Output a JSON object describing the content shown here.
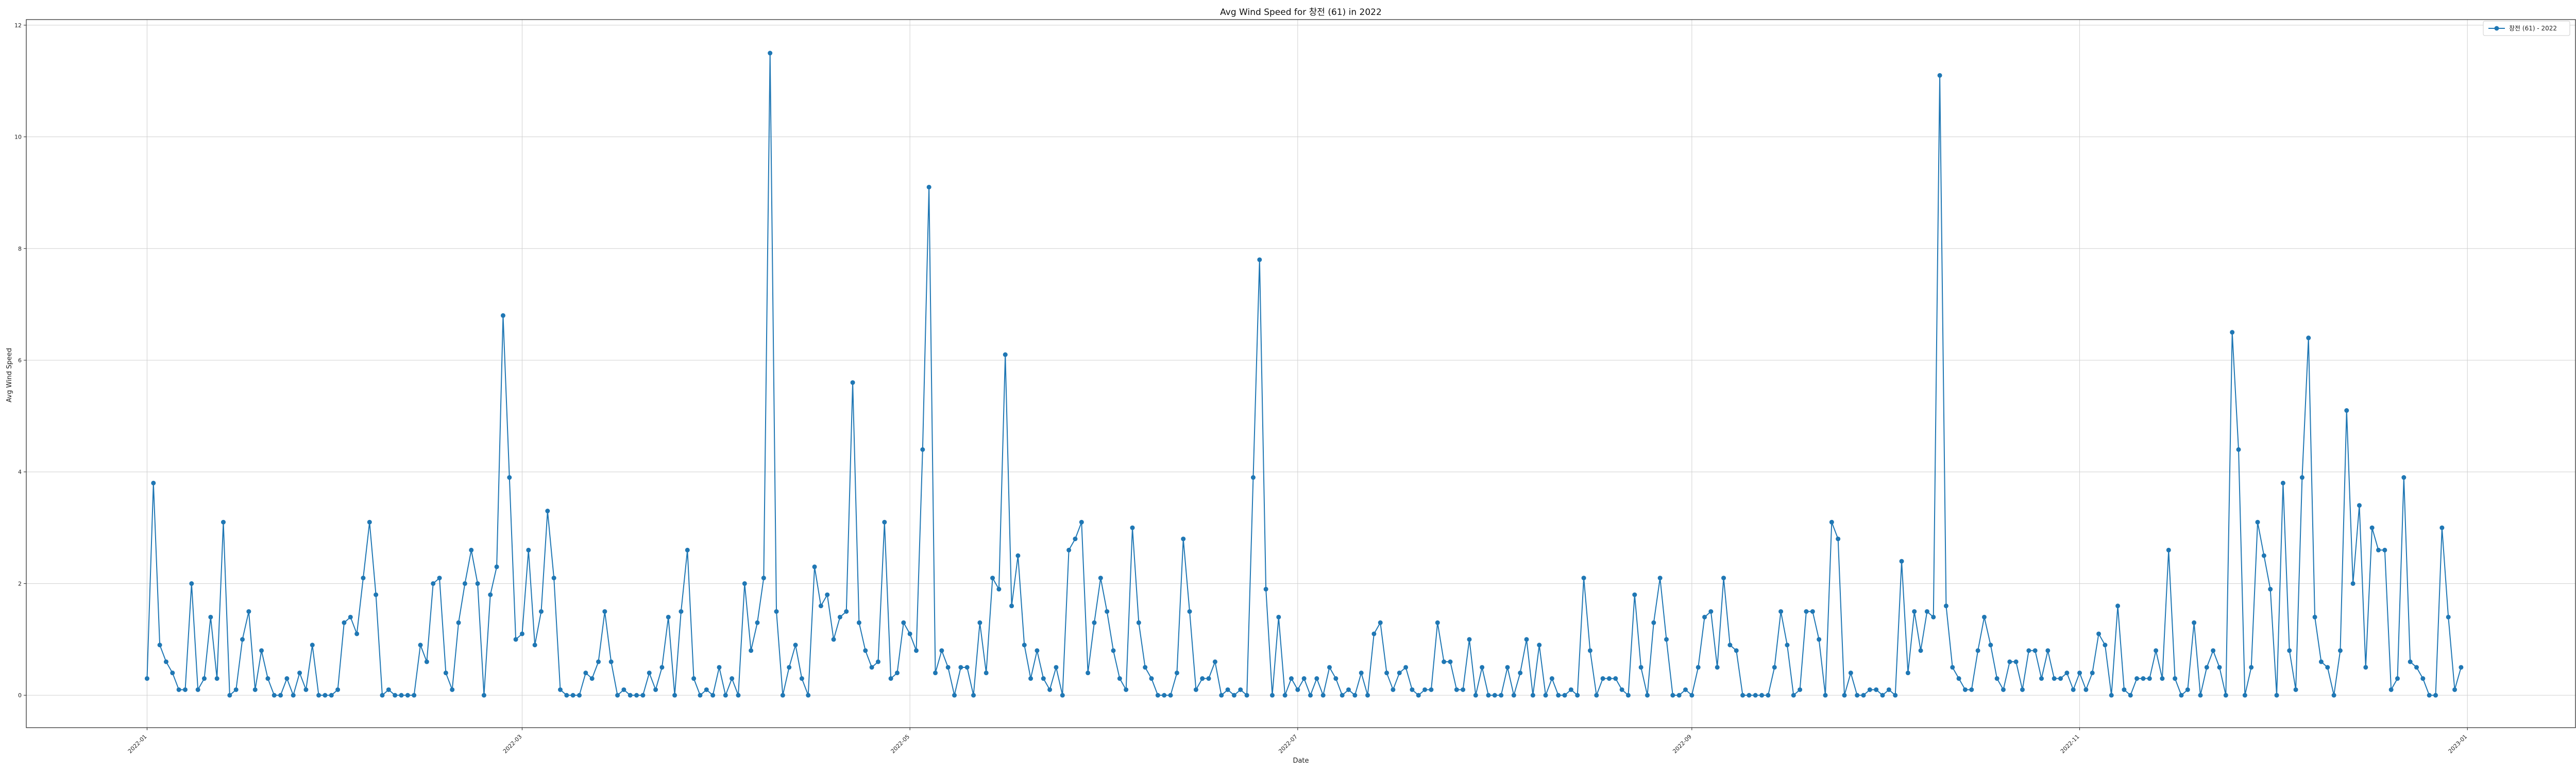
{
  "chart_data": {
    "type": "line",
    "title": "Avg Wind Speed for 창전 (61) in 2022",
    "xlabel": "Date",
    "ylabel": "Avg Wind Speed",
    "series": [
      {
        "name": "창전 (61) - 2022",
        "color": "#1f77b4",
        "marker": "circle",
        "x": [
          "2022-01-01",
          "2022-01-02",
          "2022-01-03",
          "2022-01-04",
          "2022-01-05",
          "2022-01-06",
          "2022-01-07",
          "2022-01-08",
          "2022-01-09",
          "2022-01-10",
          "2022-01-11",
          "2022-01-12",
          "2022-01-13",
          "2022-01-14",
          "2022-01-15",
          "2022-01-16",
          "2022-01-17",
          "2022-01-18",
          "2022-01-19",
          "2022-01-20",
          "2022-01-21",
          "2022-01-22",
          "2022-01-23",
          "2022-01-24",
          "2022-01-25",
          "2022-01-26",
          "2022-01-27",
          "2022-01-28",
          "2022-01-29",
          "2022-01-30",
          "2022-01-31",
          "2022-02-01",
          "2022-02-02",
          "2022-02-03",
          "2022-02-04",
          "2022-02-05",
          "2022-02-06",
          "2022-02-07",
          "2022-02-08",
          "2022-02-09",
          "2022-02-10",
          "2022-02-11",
          "2022-02-12",
          "2022-02-13",
          "2022-02-14",
          "2022-02-15",
          "2022-02-16",
          "2022-02-17",
          "2022-02-18",
          "2022-02-19",
          "2022-02-20",
          "2022-02-21",
          "2022-02-22",
          "2022-02-23",
          "2022-02-24",
          "2022-02-25",
          "2022-02-26",
          "2022-02-27",
          "2022-02-28",
          "2022-03-01",
          "2022-03-02",
          "2022-03-03",
          "2022-03-04",
          "2022-03-05",
          "2022-03-06",
          "2022-03-07",
          "2022-03-08",
          "2022-03-09",
          "2022-03-10",
          "2022-03-11",
          "2022-03-12",
          "2022-03-13",
          "2022-03-14",
          "2022-03-15",
          "2022-03-16",
          "2022-03-17",
          "2022-03-18",
          "2022-03-19",
          "2022-03-20",
          "2022-03-21",
          "2022-03-22",
          "2022-03-23",
          "2022-03-24",
          "2022-03-25",
          "2022-03-26",
          "2022-03-27",
          "2022-03-28",
          "2022-03-29",
          "2022-03-30",
          "2022-03-31",
          "2022-04-01",
          "2022-04-02",
          "2022-04-03",
          "2022-04-04",
          "2022-04-05",
          "2022-04-06",
          "2022-04-07",
          "2022-04-08",
          "2022-04-09",
          "2022-04-10",
          "2022-04-11",
          "2022-04-12",
          "2022-04-13",
          "2022-04-14",
          "2022-04-15",
          "2022-04-16",
          "2022-04-17",
          "2022-04-18",
          "2022-04-19",
          "2022-04-20",
          "2022-04-21",
          "2022-04-22",
          "2022-04-23",
          "2022-04-24",
          "2022-04-25",
          "2022-04-26",
          "2022-04-27",
          "2022-04-28",
          "2022-04-29",
          "2022-04-30",
          "2022-05-01",
          "2022-05-02",
          "2022-05-03",
          "2022-05-04",
          "2022-05-05",
          "2022-05-06",
          "2022-05-07",
          "2022-05-08",
          "2022-05-09",
          "2022-05-10",
          "2022-05-11",
          "2022-05-12",
          "2022-05-13",
          "2022-05-14",
          "2022-05-15",
          "2022-05-16",
          "2022-05-17",
          "2022-05-18",
          "2022-05-19",
          "2022-05-20",
          "2022-05-21",
          "2022-05-22",
          "2022-05-23",
          "2022-05-24",
          "2022-05-25",
          "2022-05-26",
          "2022-05-27",
          "2022-05-28",
          "2022-05-29",
          "2022-05-30",
          "2022-05-31",
          "2022-06-01",
          "2022-06-02",
          "2022-06-03",
          "2022-06-04",
          "2022-06-05",
          "2022-06-06",
          "2022-06-07",
          "2022-06-08",
          "2022-06-09",
          "2022-06-10",
          "2022-06-11",
          "2022-06-12",
          "2022-06-13",
          "2022-06-14",
          "2022-06-15",
          "2022-06-16",
          "2022-06-17",
          "2022-06-18",
          "2022-06-19",
          "2022-06-20",
          "2022-06-21",
          "2022-06-22",
          "2022-06-23",
          "2022-06-24",
          "2022-06-25",
          "2022-06-26",
          "2022-06-27",
          "2022-06-28",
          "2022-06-29",
          "2022-06-30",
          "2022-07-01",
          "2022-07-02",
          "2022-07-03",
          "2022-07-04",
          "2022-07-05",
          "2022-07-06",
          "2022-07-07",
          "2022-07-08",
          "2022-07-09",
          "2022-07-10",
          "2022-07-11",
          "2022-07-12",
          "2022-07-13",
          "2022-07-14",
          "2022-07-15",
          "2022-07-16",
          "2022-07-17",
          "2022-07-18",
          "2022-07-19",
          "2022-07-20",
          "2022-07-21",
          "2022-07-22",
          "2022-07-23",
          "2022-07-24",
          "2022-07-25",
          "2022-07-26",
          "2022-07-27",
          "2022-07-28",
          "2022-07-29",
          "2022-07-30",
          "2022-07-31",
          "2022-08-01",
          "2022-08-02",
          "2022-08-03",
          "2022-08-04",
          "2022-08-05",
          "2022-08-06",
          "2022-08-07",
          "2022-08-08",
          "2022-08-09",
          "2022-08-10",
          "2022-08-11",
          "2022-08-12",
          "2022-08-13",
          "2022-08-14",
          "2022-08-15",
          "2022-08-16",
          "2022-08-17",
          "2022-08-18",
          "2022-08-19",
          "2022-08-20",
          "2022-08-21",
          "2022-08-22",
          "2022-08-23",
          "2022-08-24",
          "2022-08-25",
          "2022-08-26",
          "2022-08-27",
          "2022-08-28",
          "2022-08-29",
          "2022-08-30",
          "2022-08-31",
          "2022-09-01",
          "2022-09-02",
          "2022-09-03",
          "2022-09-04",
          "2022-09-05",
          "2022-09-06",
          "2022-09-07",
          "2022-09-08",
          "2022-09-09",
          "2022-09-10",
          "2022-09-11",
          "2022-09-12",
          "2022-09-13",
          "2022-09-14",
          "2022-09-15",
          "2022-09-16",
          "2022-09-17",
          "2022-09-18",
          "2022-09-19",
          "2022-09-20",
          "2022-09-21",
          "2022-09-22",
          "2022-09-23",
          "2022-09-24",
          "2022-09-25",
          "2022-09-26",
          "2022-09-27",
          "2022-09-28",
          "2022-09-29",
          "2022-09-30",
          "2022-10-01",
          "2022-10-02",
          "2022-10-03",
          "2022-10-04",
          "2022-10-05",
          "2022-10-06",
          "2022-10-07",
          "2022-10-08",
          "2022-10-09",
          "2022-10-10",
          "2022-10-11",
          "2022-10-12",
          "2022-10-13",
          "2022-10-14",
          "2022-10-15",
          "2022-10-16",
          "2022-10-17",
          "2022-10-18",
          "2022-10-19",
          "2022-10-20",
          "2022-10-21",
          "2022-10-22",
          "2022-10-23",
          "2022-10-24",
          "2022-10-25",
          "2022-10-26",
          "2022-10-27",
          "2022-10-28",
          "2022-10-29",
          "2022-10-30",
          "2022-10-31",
          "2022-11-01",
          "2022-11-02",
          "2022-11-03",
          "2022-11-04",
          "2022-11-05",
          "2022-11-06",
          "2022-11-07",
          "2022-11-08",
          "2022-11-09",
          "2022-11-10",
          "2022-11-11",
          "2022-11-12",
          "2022-11-13",
          "2022-11-14",
          "2022-11-15",
          "2022-11-16",
          "2022-11-17",
          "2022-11-18",
          "2022-11-19",
          "2022-11-20",
          "2022-11-21",
          "2022-11-22",
          "2022-11-23",
          "2022-11-24",
          "2022-11-25",
          "2022-11-26",
          "2022-11-27",
          "2022-11-28",
          "2022-11-29",
          "2022-11-30",
          "2022-12-01",
          "2022-12-02",
          "2022-12-03",
          "2022-12-04",
          "2022-12-05",
          "2022-12-06",
          "2022-12-07",
          "2022-12-08",
          "2022-12-09",
          "2022-12-10",
          "2022-12-11",
          "2022-12-12",
          "2022-12-13",
          "2022-12-14",
          "2022-12-15",
          "2022-12-16",
          "2022-12-17",
          "2022-12-18",
          "2022-12-19",
          "2022-12-20",
          "2022-12-21",
          "2022-12-22",
          "2022-12-23",
          "2022-12-24",
          "2022-12-25",
          "2022-12-26",
          "2022-12-27",
          "2022-12-28",
          "2022-12-29",
          "2022-12-30",
          "2022-12-31"
        ],
        "y": [
          0.3,
          3.8,
          0.9,
          0.6,
          0.4,
          0.1,
          0.1,
          2.0,
          0.1,
          0.3,
          1.4,
          0.3,
          3.1,
          0.0,
          0.1,
          1.0,
          1.5,
          0.1,
          0.8,
          0.3,
          0.0,
          0.0,
          0.3,
          0.0,
          0.4,
          0.1,
          0.9,
          0.0,
          0.0,
          0.0,
          0.1,
          1.3,
          1.4,
          1.1,
          2.1,
          3.1,
          1.8,
          0.0,
          0.1,
          0.0,
          0.0,
          0.0,
          0.0,
          0.9,
          0.6,
          2.0,
          2.1,
          0.4,
          0.1,
          1.3,
          2.0,
          2.6,
          2.0,
          0.0,
          1.8,
          2.3,
          6.8,
          3.9,
          1.0,
          1.1,
          2.6,
          0.9,
          1.5,
          3.3,
          2.1,
          0.1,
          0.0,
          0.0,
          0.0,
          0.4,
          0.3,
          0.6,
          1.5,
          0.6,
          0.0,
          0.1,
          0.0,
          0.0,
          0.0,
          0.4,
          0.1,
          0.5,
          1.4,
          0.0,
          1.5,
          2.6,
          0.3,
          0.0,
          0.1,
          0.0,
          0.5,
          0.0,
          0.3,
          0.0,
          2.0,
          0.8,
          1.3,
          2.1,
          11.5,
          1.5,
          0.0,
          0.5,
          0.9,
          0.3,
          0.0,
          2.3,
          1.6,
          1.8,
          1.0,
          1.4,
          1.5,
          5.6,
          1.3,
          0.8,
          0.5,
          0.6,
          3.1,
          0.3,
          0.4,
          1.3,
          1.1,
          0.8,
          4.4,
          9.1,
          0.4,
          0.8,
          0.5,
          0.0,
          0.5,
          0.5,
          0.0,
          1.3,
          0.4,
          2.1,
          1.9,
          6.1,
          1.6,
          2.5,
          0.9,
          0.3,
          0.8,
          0.3,
          0.1,
          0.5,
          0.0,
          2.6,
          2.8,
          3.1,
          0.4,
          1.3,
          2.1,
          1.5,
          0.8,
          0.3,
          0.1,
          3.0,
          1.3,
          0.5,
          0.3,
          0.0,
          0.0,
          0.0,
          0.4,
          2.8,
          1.5,
          0.1,
          0.3,
          0.3,
          0.6,
          0.0,
          0.1,
          0.0,
          0.1,
          0.0,
          3.9,
          7.8,
          1.9,
          0.0,
          1.4,
          0.0,
          0.3,
          0.1,
          0.3,
          0.0,
          0.3,
          0.0,
          0.5,
          0.3,
          0.0,
          0.1,
          0.0,
          0.4,
          0.0,
          1.1,
          1.3,
          0.4,
          0.1,
          0.4,
          0.5,
          0.1,
          0.0,
          0.1,
          0.1,
          1.3,
          0.6,
          0.6,
          0.1,
          0.1,
          1.0,
          0.0,
          0.5,
          0.0,
          0.0,
          0.0,
          0.5,
          0.0,
          0.4,
          1.0,
          0.0,
          0.9,
          0.0,
          0.3,
          0.0,
          0.0,
          0.1,
          0.0,
          2.1,
          0.8,
          0.0,
          0.3,
          0.3,
          0.3,
          0.1,
          0.0,
          1.8,
          0.5,
          0.0,
          1.3,
          2.1,
          1.0,
          0.0,
          0.0,
          0.1,
          0.0,
          0.5,
          1.4,
          1.5,
          0.5,
          2.1,
          0.9,
          0.8,
          0.0,
          0.0,
          0.0,
          0.0,
          0.0,
          0.5,
          1.5,
          0.9,
          0.0,
          0.1,
          1.5,
          1.5,
          1.0,
          0.0,
          3.1,
          2.8,
          0.0,
          0.4,
          0.0,
          0.0,
          0.1,
          0.1,
          0.0,
          0.1,
          0.0,
          2.4,
          0.4,
          1.5,
          0.8,
          1.5,
          1.4,
          11.1,
          1.6,
          0.5,
          0.3,
          0.1,
          0.1,
          0.8,
          1.4,
          0.9,
          0.3,
          0.1,
          0.6,
          0.6,
          0.1,
          0.8,
          0.8,
          0.3,
          0.8,
          0.3,
          0.3,
          0.4,
          0.1,
          0.4,
          0.1,
          0.4,
          1.1,
          0.9,
          0.0,
          1.6,
          0.1,
          0.0,
          0.3,
          0.3,
          0.3,
          0.8,
          0.3,
          2.6,
          0.3,
          0.0,
          0.1,
          1.3,
          0.0,
          0.5,
          0.8,
          0.5,
          0.0,
          6.5,
          4.4,
          0.0,
          0.5,
          3.1,
          2.5,
          1.9,
          0.0,
          3.8,
          0.8,
          0.1,
          3.9,
          6.4,
          1.4,
          0.6,
          0.5,
          0.0,
          0.8,
          5.1,
          2.0,
          3.4,
          0.5,
          3.0,
          2.6,
          2.6,
          0.1,
          0.3,
          3.9,
          0.6,
          0.5,
          0.3,
          0.0,
          0.0,
          3.0,
          1.4,
          0.1,
          0.5
        ]
      }
    ],
    "xlim": [
      "2021-12-13",
      "2023-01-18"
    ],
    "ylim": [
      -0.58,
      12.1
    ],
    "xticks": [
      "2022-01",
      "2022-03",
      "2022-05",
      "2022-07",
      "2022-09",
      "2022-11",
      "2023-01"
    ],
    "yticks": [
      0,
      2,
      4,
      6,
      8,
      10,
      12
    ],
    "grid": true,
    "legend_position": "top-right"
  }
}
